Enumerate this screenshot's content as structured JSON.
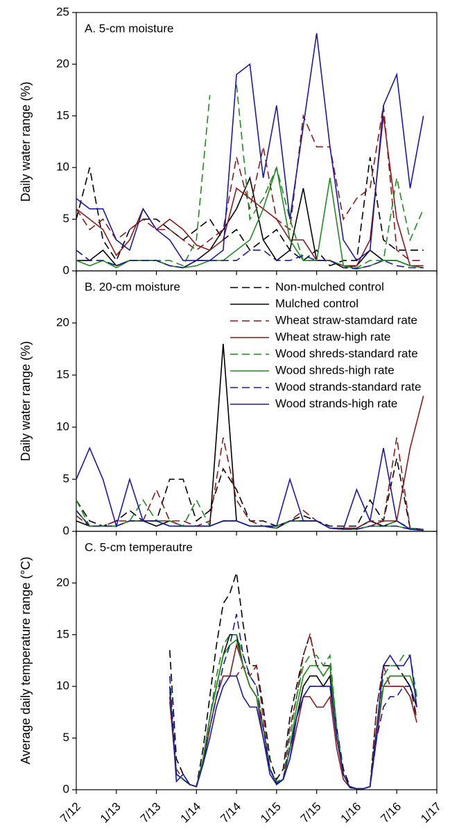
{
  "chart_data": [
    {
      "type": "line",
      "title": "A. 5-cm moisture",
      "y_label": "Daily water range (%)",
      "x": [
        0,
        2,
        4,
        6,
        8,
        10,
        12,
        14,
        16,
        18,
        20,
        22,
        24,
        26,
        28,
        30,
        32,
        34,
        36,
        38,
        40,
        42,
        44,
        46,
        48,
        50,
        52
      ],
      "xlim": [
        0,
        54
      ],
      "xticks": [
        0,
        6,
        12,
        18,
        24,
        30,
        36,
        42,
        48,
        54
      ],
      "ylim": [
        0,
        25
      ],
      "yticks": [
        0,
        5,
        10,
        15,
        20,
        25
      ],
      "series": [
        {
          "color": "#000000",
          "dash": true,
          "values": [
            5,
            10,
            3,
            1,
            4,
            5,
            5,
            4,
            3,
            4,
            5,
            3,
            4,
            2,
            3,
            4,
            2,
            1,
            2,
            0.5,
            1,
            1,
            11,
            3,
            2,
            2,
            2
          ]
        },
        {
          "color": "#000000",
          "dash": false,
          "values": [
            1,
            1,
            2,
            0.5,
            1,
            1,
            1,
            0.5,
            0.3,
            1,
            2,
            4,
            6,
            9,
            3,
            1,
            2,
            8,
            1,
            1,
            0.3,
            0.5,
            2,
            1,
            1,
            0.5,
            0.3
          ]
        },
        {
          "color": "#8b1a1a",
          "dash": true,
          "values": [
            6,
            4,
            5,
            3,
            4,
            5,
            4,
            4,
            3,
            2,
            3,
            4,
            11,
            6,
            12,
            5,
            4,
            15,
            12,
            12,
            5,
            7,
            8,
            16,
            2,
            1,
            1
          ]
        },
        {
          "color": "#8b1a1a",
          "dash": false,
          "values": [
            6,
            5,
            4,
            1.5,
            3,
            6,
            4,
            5,
            4,
            2.5,
            2,
            3,
            8,
            7,
            6,
            5,
            3,
            3,
            1,
            1,
            0.5,
            0.5,
            3,
            15,
            5,
            0.5,
            0.5
          ]
        },
        {
          "color": "#1e8c1e",
          "dash": true,
          "values": [
            2,
            1,
            1,
            0.5,
            1,
            1,
            1,
            1,
            0.5,
            3,
            17,
            null,
            18,
            5,
            7,
            10,
            5,
            1,
            1,
            1,
            0.5,
            0.3,
            1,
            1,
            9,
            3,
            6
          ]
        },
        {
          "color": "#1e8c1e",
          "dash": false,
          "values": [
            1,
            0.5,
            1,
            0.3,
            1,
            1,
            1,
            0.5,
            0.3,
            0.5,
            1,
            1,
            2,
            3,
            6,
            10,
            3,
            1,
            1,
            9,
            0.5,
            0.2,
            0.5,
            1,
            1,
            0.5,
            0.3
          ]
        },
        {
          "color": "#1a1aa0",
          "dash": true,
          "values": [
            2,
            1,
            1,
            0.5,
            1,
            1,
            1,
            0.5,
            0.3,
            1,
            1,
            1,
            1,
            2,
            2,
            1,
            1,
            1.5,
            1,
            1,
            0.3,
            0.2,
            0.5,
            1,
            0.5,
            0.3,
            0.3
          ]
        },
        {
          "color": "#1a1aa0",
          "dash": false,
          "values": [
            7,
            6,
            6,
            3,
            2,
            6,
            4,
            3,
            1,
            1,
            1,
            2,
            19,
            20,
            9,
            16,
            5,
            14,
            23,
            12,
            3,
            1,
            2,
            16,
            19,
            8,
            15
          ]
        }
      ]
    },
    {
      "type": "line",
      "title": "B. 20-cm moisture",
      "y_label": "Daily water range (%)",
      "legend": "upper right",
      "x": [
        0,
        2,
        4,
        6,
        8,
        10,
        12,
        14,
        16,
        18,
        20,
        22,
        24,
        26,
        28,
        30,
        32,
        34,
        36,
        38,
        40,
        42,
        44,
        46,
        48,
        50,
        52
      ],
      "xlim": [
        0,
        54
      ],
      "xticks": [
        0,
        6,
        12,
        18,
        24,
        30,
        36,
        42,
        48,
        54
      ],
      "ylim": [
        0,
        25
      ],
      "yticks": [
        0,
        5,
        10,
        15,
        20
      ],
      "series": [
        {
          "name": "Non-mulched control",
          "color": "#000000",
          "dash": true,
          "values": [
            3,
            1,
            0.5,
            1,
            2,
            1,
            1,
            5,
            5,
            1,
            2,
            6,
            4,
            1,
            1,
            0.5,
            1,
            1.5,
            1,
            0.5,
            0.5,
            0.5,
            3,
            1,
            7,
            0.3,
            0.2
          ]
        },
        {
          "name": "Mulched control",
          "color": "#000000",
          "dash": false,
          "values": [
            1,
            0.5,
            0.5,
            0.5,
            1,
            1,
            0.5,
            1,
            0.5,
            0.5,
            0.5,
            18,
            1,
            0.5,
            0.5,
            0.5,
            1,
            1,
            1,
            0.3,
            0.3,
            0.3,
            1,
            0.5,
            1,
            0.2,
            0.1
          ]
        },
        {
          "name": "Wheat straw-stamdard rate",
          "color": "#8b1a1a",
          "dash": true,
          "values": [
            1.5,
            0.5,
            0.5,
            1,
            1,
            1,
            4,
            1,
            1,
            0.5,
            1,
            9,
            3,
            1,
            0.5,
            0.5,
            1,
            2,
            1,
            0.3,
            0.3,
            0.3,
            1,
            1,
            9,
            0.3,
            0.2
          ]
        },
        {
          "name": "Wheat straw-high rate",
          "color": "#8b1a1a",
          "dash": false,
          "values": [
            2,
            0.5,
            0.5,
            0.5,
            1,
            1,
            1,
            1,
            0.5,
            0.5,
            0.5,
            1,
            1,
            0.5,
            0.5,
            0.3,
            1,
            1,
            1,
            0.3,
            0.2,
            0.2,
            0.5,
            1,
            1,
            8,
            13
          ]
        },
        {
          "name": "Wood shreds-standard rate",
          "color": "#1e8c1e",
          "dash": true,
          "values": [
            3,
            0.5,
            0.5,
            0.5,
            1,
            3,
            1,
            1,
            0.5,
            3,
            0.5,
            1,
            1,
            0.5,
            0.5,
            0.5,
            1,
            1,
            1,
            0.3,
            0.2,
            0.2,
            0.5,
            0.5,
            1,
            0.3,
            0.2
          ]
        },
        {
          "name": "Wood shreds-high rate",
          "color": "#1e8c1e",
          "dash": false,
          "values": [
            2,
            0.5,
            0.5,
            0.5,
            1,
            1,
            1,
            0.5,
            0.5,
            0.5,
            0.5,
            1,
            1,
            0.5,
            0.5,
            0.3,
            1,
            1,
            1,
            0.3,
            0.2,
            0.2,
            0.5,
            0.5,
            0.5,
            0.2,
            0.1
          ]
        },
        {
          "name": "Wood strands-standard rate",
          "color": "#1a1aa0",
          "dash": true,
          "values": [
            2,
            0.5,
            0.5,
            0.5,
            1,
            1,
            1,
            0.5,
            0.5,
            0.5,
            0.5,
            1,
            1,
            0.5,
            0.5,
            0.3,
            1,
            1,
            1,
            0.3,
            0.2,
            0.2,
            0.5,
            0.5,
            0.5,
            0.2,
            0.1
          ]
        },
        {
          "name": "Wood strands-high rate",
          "color": "#1a1aa0",
          "dash": false,
          "values": [
            5,
            8,
            5,
            0.5,
            5,
            1,
            1,
            0.5,
            0.5,
            0.5,
            0.5,
            1,
            1,
            0.5,
            0.5,
            0.5,
            5,
            1,
            1,
            0.3,
            0.2,
            4,
            1,
            8,
            1,
            0.2,
            0.1
          ]
        }
      ]
    },
    {
      "type": "line",
      "title": "C. 5-cm temperautre",
      "y_label": "Average daily temperature range (°C)",
      "x": [
        14,
        15,
        16,
        17,
        18,
        19,
        20,
        21,
        22,
        23,
        24,
        25,
        26,
        27,
        28,
        29,
        30,
        31,
        32,
        33,
        34,
        35,
        36,
        37,
        38,
        39,
        40,
        41,
        42,
        43,
        44,
        45,
        46,
        47,
        48,
        49,
        50,
        51
      ],
      "xlim": [
        0,
        54
      ],
      "xticks": [
        {
          "value": 0,
          "label": "7/12"
        },
        {
          "value": 6,
          "label": "1/13"
        },
        {
          "value": 12,
          "label": "7/13"
        },
        {
          "value": 18,
          "label": "1/14"
        },
        {
          "value": 24,
          "label": "7/14"
        },
        {
          "value": 30,
          "label": "1/15"
        },
        {
          "value": 36,
          "label": "7/15"
        },
        {
          "value": 42,
          "label": "1/16"
        },
        {
          "value": 48,
          "label": "7/16"
        },
        {
          "value": 54,
          "label": "1/17"
        }
      ],
      "ylim": [
        0,
        25
      ],
      "yticks": [
        0,
        5,
        10,
        15,
        20
      ],
      "series": [
        {
          "color": "#000000",
          "dash": true,
          "values": [
            13.5,
            3,
            1.5,
            0.5,
            0.3,
            4,
            9,
            14,
            18,
            19,
            21,
            16,
            12,
            12,
            8,
            3,
            1,
            2,
            7,
            10,
            13,
            15,
            12,
            12,
            12,
            6,
            2,
            0.3,
            0.1,
            0.1,
            0.3,
            8,
            12,
            12,
            12,
            11,
            10,
            7
          ]
        },
        {
          "color": "#000000",
          "dash": false,
          "values": [
            9,
            1.5,
            1,
            0.5,
            0.3,
            3,
            7,
            10,
            13,
            15,
            15,
            12,
            10,
            9,
            6,
            2,
            0.6,
            1,
            4,
            7,
            10,
            11,
            11,
            10,
            11,
            5,
            1.5,
            0.2,
            0.1,
            0.1,
            0.3,
            6,
            10,
            11,
            11,
            11,
            10,
            8
          ]
        },
        {
          "color": "#8b1a1a",
          "dash": true,
          "values": [
            9,
            2,
            1,
            0.5,
            0.3,
            3,
            6,
            9,
            11,
            11,
            11,
            12,
            11,
            12,
            7,
            2,
            0.7,
            1,
            6,
            9,
            13,
            15,
            12,
            11,
            12,
            5,
            1.5,
            0.2,
            0.1,
            0.1,
            0.3,
            8,
            12,
            10,
            10,
            10,
            9,
            7
          ]
        },
        {
          "color": "#8b1a1a",
          "dash": false,
          "values": [
            8.5,
            1.5,
            1,
            0.5,
            0.3,
            2.5,
            6,
            9,
            11,
            11,
            14,
            12,
            10,
            9,
            5,
            2,
            0.5,
            1,
            3,
            6,
            9,
            9,
            8,
            8,
            9,
            4,
            1,
            0.2,
            0.1,
            0.1,
            0.3,
            5,
            10,
            10,
            10,
            10,
            9,
            6.5
          ]
        },
        {
          "color": "#1e8c1e",
          "dash": true,
          "values": [
            10,
            1.5,
            1,
            0.5,
            0.3,
            3,
            7,
            11,
            14,
            15,
            15,
            13,
            11,
            10,
            6,
            2,
            0.8,
            1,
            5,
            9,
            12,
            13,
            13,
            12,
            13,
            6,
            1.5,
            0.2,
            0.1,
            0.1,
            0.3,
            6,
            11,
            12,
            12,
            13,
            13,
            9
          ]
        },
        {
          "color": "#1e8c1e",
          "dash": false,
          "values": [
            9.5,
            1.5,
            1,
            0.5,
            0.3,
            3,
            7,
            10,
            13,
            14,
            14.5,
            12,
            10,
            9,
            6,
            2,
            0.7,
            1,
            4,
            8,
            11,
            12,
            12,
            11,
            12,
            5,
            1.5,
            0.2,
            0.1,
            0.1,
            0.3,
            6,
            10,
            11,
            11,
            11,
            11,
            9
          ]
        },
        {
          "color": "#1a1aa0",
          "dash": true,
          "values": [
            11,
            1.5,
            1,
            0.5,
            0.3,
            2.5,
            6,
            9,
            12,
            14,
            17,
            13,
            11,
            10,
            6,
            2,
            0.6,
            1,
            4,
            7,
            9,
            10,
            10,
            10,
            10,
            5,
            1.5,
            0.2,
            0.1,
            0.1,
            0.3,
            5,
            8,
            9,
            9,
            10,
            10,
            8
          ]
        },
        {
          "color": "#1a1aa0",
          "dash": false,
          "values": [
            10,
            0.8,
            1.5,
            0.5,
            0.3,
            2.5,
            5,
            8,
            10,
            11,
            11,
            9,
            8,
            8,
            5,
            1.5,
            0.5,
            1,
            3,
            7,
            9,
            10,
            10,
            10,
            10,
            5,
            1.5,
            0.2,
            0.1,
            0.1,
            0.3,
            6,
            12,
            13,
            12,
            12,
            13,
            8
          ]
        }
      ]
    }
  ]
}
